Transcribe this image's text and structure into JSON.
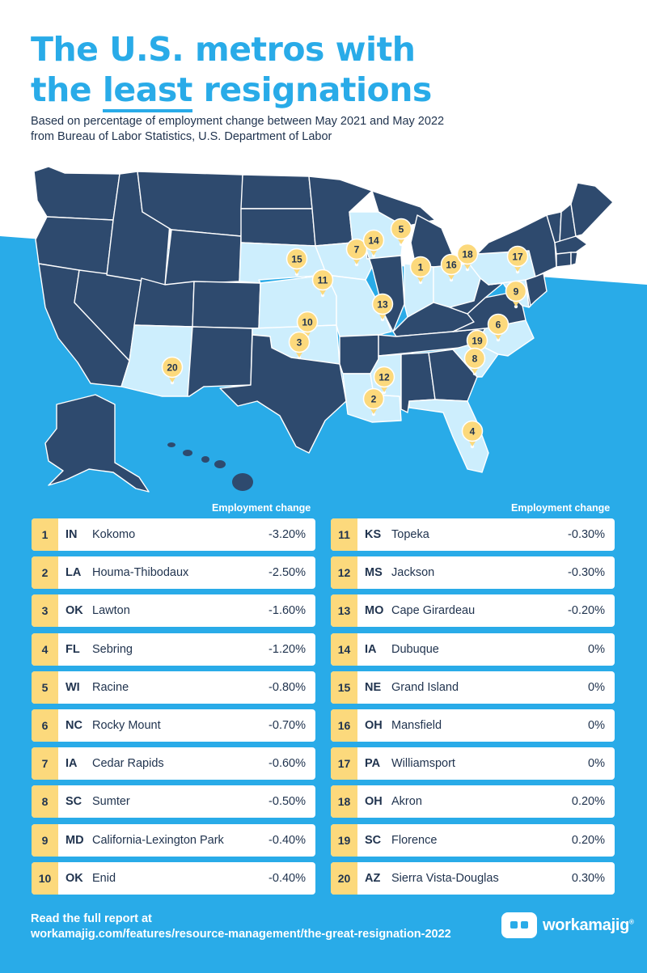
{
  "title": {
    "line1": "The U.S. metros with",
    "line2_before": "the ",
    "line2_underlined": "least",
    "line2_after": " resignations"
  },
  "subtitle": {
    "line1": "Based on percentage of employment change between May 2021 and May 2022",
    "line2": "from Bureau of Labor Statistics, U.S. Department of Labor"
  },
  "colors": {
    "accent": "#29abe8",
    "state_dark": "#2e4a6e",
    "state_light": "#cdeefd",
    "pin": "#fcd97c",
    "text": "#21344f"
  },
  "map": {
    "pins": [
      {
        "rank": "1",
        "state": "IN"
      },
      {
        "rank": "2",
        "state": "LA"
      },
      {
        "rank": "3",
        "state": "OK"
      },
      {
        "rank": "4",
        "state": "FL"
      },
      {
        "rank": "5",
        "state": "WI"
      },
      {
        "rank": "6",
        "state": "NC"
      },
      {
        "rank": "7",
        "state": "IA"
      },
      {
        "rank": "8",
        "state": "SC"
      },
      {
        "rank": "9",
        "state": "MD"
      },
      {
        "rank": "10",
        "state": "OK"
      },
      {
        "rank": "11",
        "state": "KS"
      },
      {
        "rank": "12",
        "state": "MS"
      },
      {
        "rank": "13",
        "state": "MO"
      },
      {
        "rank": "14",
        "state": "IA"
      },
      {
        "rank": "15",
        "state": "NE"
      },
      {
        "rank": "16",
        "state": "OH"
      },
      {
        "rank": "17",
        "state": "PA"
      },
      {
        "rank": "18",
        "state": "OH"
      },
      {
        "rank": "19",
        "state": "SC"
      },
      {
        "rank": "20",
        "state": "AZ"
      }
    ]
  },
  "table": {
    "column_header": "Employment change",
    "left": [
      {
        "rank": "1",
        "state": "IN",
        "city": "Kokomo",
        "change": "-3.20%"
      },
      {
        "rank": "2",
        "state": "LA",
        "city": "Houma-Thibodaux",
        "change": "-2.50%"
      },
      {
        "rank": "3",
        "state": "OK",
        "city": "Lawton",
        "change": "-1.60%"
      },
      {
        "rank": "4",
        "state": "FL",
        "city": "Sebring",
        "change": "-1.20%"
      },
      {
        "rank": "5",
        "state": "WI",
        "city": "Racine",
        "change": "-0.80%"
      },
      {
        "rank": "6",
        "state": "NC",
        "city": "Rocky Mount",
        "change": "-0.70%"
      },
      {
        "rank": "7",
        "state": "IA",
        "city": "Cedar Rapids",
        "change": "-0.60%"
      },
      {
        "rank": "8",
        "state": "SC",
        "city": "Sumter",
        "change": "-0.50%"
      },
      {
        "rank": "9",
        "state": "MD",
        "city": "California-Lexington Park",
        "change": "-0.40%"
      },
      {
        "rank": "10",
        "state": "OK",
        "city": "Enid",
        "change": "-0.40%"
      }
    ],
    "right": [
      {
        "rank": "11",
        "state": "KS",
        "city": "Topeka",
        "change": "-0.30%"
      },
      {
        "rank": "12",
        "state": "MS",
        "city": "Jackson",
        "change": "-0.30%"
      },
      {
        "rank": "13",
        "state": "MO",
        "city": "Cape Girardeau",
        "change": "-0.20%"
      },
      {
        "rank": "14",
        "state": "IA",
        "city": "Dubuque",
        "change": "0%"
      },
      {
        "rank": "15",
        "state": "NE",
        "city": "Grand Island",
        "change": "0%"
      },
      {
        "rank": "16",
        "state": "OH",
        "city": "Mansfield",
        "change": "0%"
      },
      {
        "rank": "17",
        "state": "PA",
        "city": "Williamsport",
        "change": "0%"
      },
      {
        "rank": "18",
        "state": "OH",
        "city": "Akron",
        "change": "0.20%"
      },
      {
        "rank": "19",
        "state": "SC",
        "city": "Florence",
        "change": "0.20%"
      },
      {
        "rank": "20",
        "state": "AZ",
        "city": "Sierra Vista-Douglas",
        "change": "0.30%"
      }
    ]
  },
  "footer": {
    "line1": "Read the full report at",
    "line2": "workamajig.com/features/resource-management/the-great-resignation-2022"
  },
  "logo": {
    "text": "workamajig",
    "mark": "registered"
  }
}
